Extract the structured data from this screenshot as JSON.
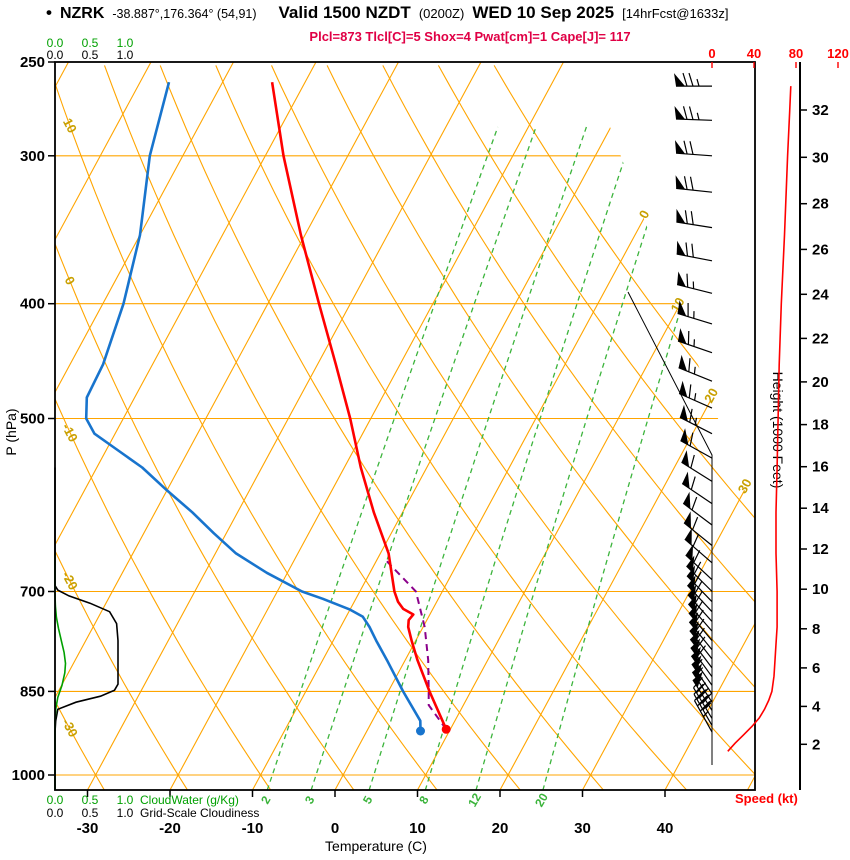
{
  "header": {
    "bullet": "•",
    "station": "NZRK",
    "coords": "-38.887°,176.364° (54,91)",
    "valid_main": "Valid 1500 NZDT",
    "valid_utc": "(0200Z)",
    "valid_date": "WED 10 Sep 2025",
    "forecast_tag": "[14hrFcst@1633z]"
  },
  "indices_line": "Plcl=873 Tlcl[C]=5 Shox=4 Pwat[cm]=1 Cape[J]= 117",
  "axes": {
    "pressure": {
      "title": "P (hPa)",
      "ticks": [
        250,
        300,
        400,
        500,
        700,
        850,
        1000
      ]
    },
    "temperature": {
      "title": "Temperature (C)",
      "ticks": [
        -30,
        -20,
        -10,
        0,
        10,
        20,
        30,
        40
      ]
    },
    "height": {
      "title": "Height (1000 Feet)",
      "ticks": [
        2,
        4,
        6,
        8,
        10,
        12,
        14,
        16,
        18,
        20,
        22,
        24,
        26,
        28,
        30,
        32
      ]
    },
    "speed": {
      "title": "Speed (kt)",
      "ticks": [
        0,
        40,
        80,
        120
      ]
    },
    "cloudwater_scale": {
      "label": "CloudWater (g/Kg)",
      "ticks": [
        "0.0",
        "0.5",
        "1.0"
      ]
    },
    "cloudiness_scale": {
      "label": "Grid-Scale Cloudiness",
      "ticks": [
        "0.0",
        "0.5",
        "1.0"
      ]
    }
  },
  "colors": {
    "grid_orange": "#FFA500",
    "label_yellow": "#C8A000",
    "mixing_green": "#3CB43C",
    "cloudwater_green": "#00A000",
    "temp_red": "#FF0000",
    "dewpoint_blue": "#1874CD",
    "parcel_purple": "#8B008B",
    "indices_magenta": "#E00045",
    "speed_red": "#FF0000",
    "frame_black": "#000000"
  },
  "chart_data": {
    "type": "skewt-log-p-sounding",
    "pressure_range_hPa": [
      1030,
      250
    ],
    "isobar_lines": [
      300,
      400,
      500,
      700,
      850,
      1000
    ],
    "isotherm_range": [
      -80,
      50
    ],
    "isotherm_step": 10,
    "dry_adiabat_range": [
      -40,
      90
    ],
    "dry_adiabat_step": 10,
    "mixing_ratio_values": [
      2,
      3,
      5,
      8,
      12,
      20
    ],
    "isotherm_label_values": [
      0,
      10,
      20,
      30
    ],
    "dry_adiabat_label_values": [
      10,
      0,
      -10,
      -20,
      -30
    ],
    "temperature_profile": [
      [
        915,
        9.5
      ],
      [
        900,
        8.5
      ],
      [
        850,
        5
      ],
      [
        800,
        1.5
      ],
      [
        770,
        -0.5
      ],
      [
        750,
        -1.8
      ],
      [
        740,
        -2.2
      ],
      [
        732,
        -2
      ],
      [
        724,
        -3.6
      ],
      [
        714,
        -4.7
      ],
      [
        700,
        -5.8
      ],
      [
        650,
        -9
      ],
      [
        600,
        -13.5
      ],
      [
        550,
        -18
      ],
      [
        500,
        -22.5
      ],
      [
        450,
        -27.8
      ],
      [
        400,
        -33.8
      ],
      [
        350,
        -40.5
      ],
      [
        300,
        -47.8
      ],
      [
        260,
        -54
      ]
    ],
    "dewpoint_profile": [
      [
        918,
        6.5
      ],
      [
        900,
        5.8
      ],
      [
        850,
        1.8
      ],
      [
        800,
        -2.2
      ],
      [
        770,
        -4.8
      ],
      [
        750,
        -6.5
      ],
      [
        735,
        -8
      ],
      [
        725,
        -10
      ],
      [
        710,
        -14
      ],
      [
        700,
        -17
      ],
      [
        675,
        -22.5
      ],
      [
        650,
        -27.5
      ],
      [
        625,
        -31.5
      ],
      [
        600,
        -35.5
      ],
      [
        575,
        -40
      ],
      [
        550,
        -44.5
      ],
      [
        530,
        -49
      ],
      [
        515,
        -52.5
      ],
      [
        500,
        -54.5
      ],
      [
        480,
        -55.8
      ],
      [
        450,
        -56
      ],
      [
        400,
        -57.5
      ],
      [
        350,
        -60
      ],
      [
        300,
        -64
      ],
      [
        260,
        -66.5
      ]
    ],
    "parcel_profile": [
      [
        915,
        9.5
      ],
      [
        873,
        5.8
      ],
      [
        850,
        4.9
      ],
      [
        800,
        2.8
      ],
      [
        750,
        0.2
      ],
      [
        700,
        -3.2
      ],
      [
        660,
        -8.7
      ]
    ],
    "surface_markers": {
      "temperature": [
        915,
        9.5
      ],
      "dewpoint": [
        918,
        6.5
      ]
    },
    "wind_barbs": [
      [
        262,
        270,
        75
      ],
      [
        280,
        272,
        73
      ],
      [
        300,
        274,
        72
      ],
      [
        322,
        276,
        71
      ],
      [
        345,
        279,
        70
      ],
      [
        368,
        281,
        68
      ],
      [
        392,
        284,
        67
      ],
      [
        416,
        287,
        66
      ],
      [
        440,
        289,
        65
      ],
      [
        465,
        292,
        64
      ],
      [
        490,
        294,
        63
      ],
      [
        515,
        297,
        63
      ],
      [
        540,
        299,
        62
      ],
      [
        565,
        302,
        62
      ],
      [
        590,
        304,
        62
      ],
      [
        615,
        307,
        62
      ],
      [
        640,
        309,
        61
      ],
      [
        662,
        311,
        61
      ],
      [
        684,
        313,
        62
      ],
      [
        700,
        315,
        62
      ],
      [
        714,
        316,
        62
      ],
      [
        728,
        317,
        62
      ],
      [
        742,
        318,
        62
      ],
      [
        756,
        319,
        61
      ],
      [
        770,
        320,
        61
      ],
      [
        784,
        321,
        60
      ],
      [
        798,
        322,
        60
      ],
      [
        812,
        323,
        59
      ],
      [
        826,
        324,
        58
      ],
      [
        840,
        325,
        57
      ],
      [
        854,
        326,
        55
      ],
      [
        868,
        327,
        52
      ],
      [
        882,
        328,
        48
      ],
      [
        896,
        329,
        44
      ],
      [
        908,
        330,
        40
      ],
      [
        920,
        331,
        35
      ]
    ],
    "speed_profile_kt": [
      [
        955,
        15
      ],
      [
        940,
        22
      ],
      [
        925,
        30
      ],
      [
        910,
        38
      ],
      [
        895,
        45
      ],
      [
        880,
        50
      ],
      [
        865,
        54
      ],
      [
        850,
        57
      ],
      [
        825,
        59
      ],
      [
        800,
        60
      ],
      [
        775,
        61
      ],
      [
        750,
        62
      ],
      [
        725,
        62
      ],
      [
        700,
        62
      ],
      [
        650,
        61
      ],
      [
        600,
        61
      ],
      [
        550,
        62
      ],
      [
        500,
        63
      ],
      [
        450,
        64
      ],
      [
        400,
        66
      ],
      [
        350,
        69
      ],
      [
        300,
        72
      ],
      [
        275,
        74
      ],
      [
        262,
        75
      ]
    ],
    "cloud_cover_profile": [
      [
        1030,
        0
      ],
      [
        920,
        0
      ],
      [
        900,
        0.01
      ],
      [
        880,
        0.04
      ],
      [
        868,
        0.3
      ],
      [
        858,
        0.65
      ],
      [
        848,
        0.85
      ],
      [
        838,
        0.9
      ],
      [
        800,
        0.9
      ],
      [
        770,
        0.9
      ],
      [
        745,
        0.88
      ],
      [
        728,
        0.78
      ],
      [
        716,
        0.5
      ],
      [
        706,
        0.2
      ],
      [
        698,
        0.04
      ],
      [
        692,
        0
      ],
      [
        660,
        0
      ],
      [
        550,
        0
      ]
    ],
    "cloud_water_profile": [
      [
        1030,
        0
      ],
      [
        900,
        0
      ],
      [
        880,
        0.01
      ],
      [
        860,
        0.04
      ],
      [
        840,
        0.1
      ],
      [
        820,
        0.14
      ],
      [
        805,
        0.15
      ],
      [
        788,
        0.13
      ],
      [
        770,
        0.09
      ],
      [
        752,
        0.05
      ],
      [
        736,
        0.02
      ],
      [
        720,
        0.005
      ],
      [
        705,
        0
      ],
      [
        650,
        0
      ]
    ]
  }
}
